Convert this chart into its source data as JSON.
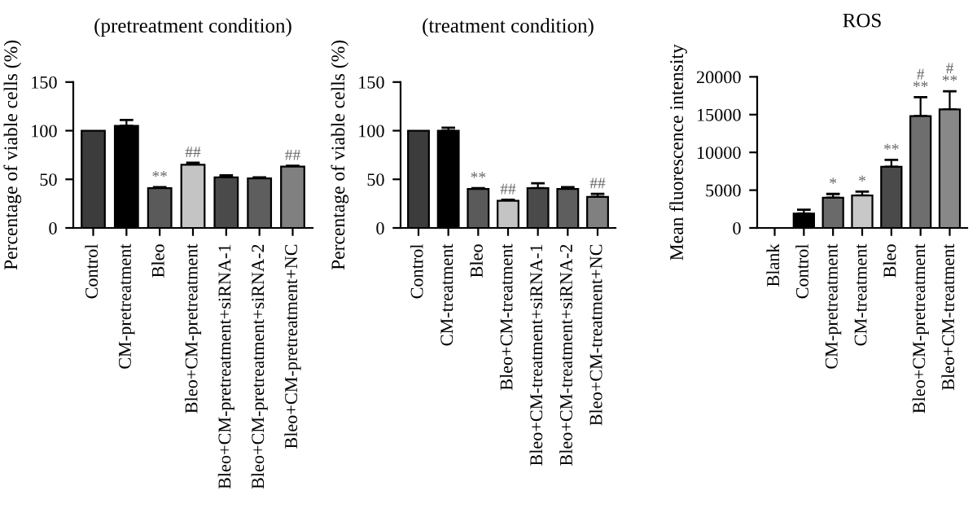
{
  "chart_data": [
    {
      "type": "bar",
      "title": "(pretreatment condition)",
      "ylabel": "Percentage of viable cells (%)",
      "categories": [
        "Control",
        "CM-pretreatment",
        "Bleo",
        "Bleo+CM-pretreatment",
        "Bleo+CM-pretreatment+siRNA-1",
        "Bleo+CM-pretreatment+siRNA-2",
        "Bleo+CM-pretreatment+NC"
      ],
      "values": [
        100,
        105,
        41,
        65,
        52,
        51,
        63
      ],
      "errors": [
        null,
        6,
        1,
        2,
        2,
        1,
        1
      ],
      "colors": [
        "#3c3c3c",
        "#000000",
        "#5a5a5a",
        "#c4c4c4",
        "#4a4a4a",
        "#5e5e5e",
        "#808080"
      ],
      "ylim": [
        0,
        150
      ],
      "yticks": [
        0,
        50,
        100,
        150
      ],
      "grid": false,
      "legend": false,
      "annotations": [
        {
          "text": "**",
          "x": "Bleo",
          "y": 42
        },
        {
          "text": "##",
          "x": "Bleo+CM-pretreatment",
          "y": 67
        },
        {
          "text": "##",
          "x": "Bleo+CM-pretreatment+NC",
          "y": 64
        }
      ]
    },
    {
      "type": "bar",
      "title": "(treatment condition)",
      "ylabel": "Percentage of viable cells (%)",
      "categories": [
        "Control",
        "CM-treatment",
        "Bleo",
        "Bleo+CM-treatment",
        "Bleo+CM-treatment+siRNA-1",
        "Bleo+CM-treatment+siRNA-2",
        "Bleo+CM-treatment+NC"
      ],
      "values": [
        100,
        100,
        40,
        28,
        41,
        40,
        32
      ],
      "errors": [
        null,
        3,
        1,
        1,
        5,
        2,
        3
      ],
      "colors": [
        "#3c3c3c",
        "#000000",
        "#5a5a5a",
        "#c4c4c4",
        "#4a4a4a",
        "#5e5e5e",
        "#808080"
      ],
      "ylim": [
        0,
        150
      ],
      "yticks": [
        0,
        50,
        100,
        150
      ],
      "grid": false,
      "legend": false,
      "annotations": [
        {
          "text": "**",
          "x": "Bleo",
          "y": 41
        },
        {
          "text": "##",
          "x": "Bleo+CM-treatment",
          "y": 29
        },
        {
          "text": "##",
          "x": "Bleo+CM-treatment+NC",
          "y": 35
        }
      ]
    },
    {
      "type": "bar",
      "title": "ROS",
      "ylabel": "Mean fluorescence intensity",
      "categories": [
        "Blank",
        "Control",
        "CM-pretreatment",
        "CM-treatment",
        "Bleo",
        "Bleo+CM-pretreatment",
        "Bleo+CM-treatment"
      ],
      "values": [
        0,
        1900,
        4000,
        4300,
        8100,
        14800,
        15700
      ],
      "errors": [
        null,
        500,
        500,
        500,
        900,
        2500,
        2400
      ],
      "colors": [
        "#000000",
        "#000000",
        "#6a6a6a",
        "#c8c8c8",
        "#4a4a4a",
        "#6e6e6e",
        "#888888"
      ],
      "ylim": [
        0,
        20000
      ],
      "yticks": [
        0,
        5000,
        10000,
        15000,
        20000
      ],
      "grid": false,
      "legend": false,
      "annotations": [
        {
          "text": "*",
          "x": "CM-pretreatment",
          "y": 4500
        },
        {
          "text": "*",
          "x": "CM-treatment",
          "y": 4800
        },
        {
          "text": "**",
          "x": "Bleo",
          "y": 9000
        },
        {
          "text": "#\n**",
          "x": "Bleo+CM-pretreatment",
          "y": 17300
        },
        {
          "text": "#\n**",
          "x": "Bleo+CM-treatment",
          "y": 18100
        }
      ]
    }
  ]
}
